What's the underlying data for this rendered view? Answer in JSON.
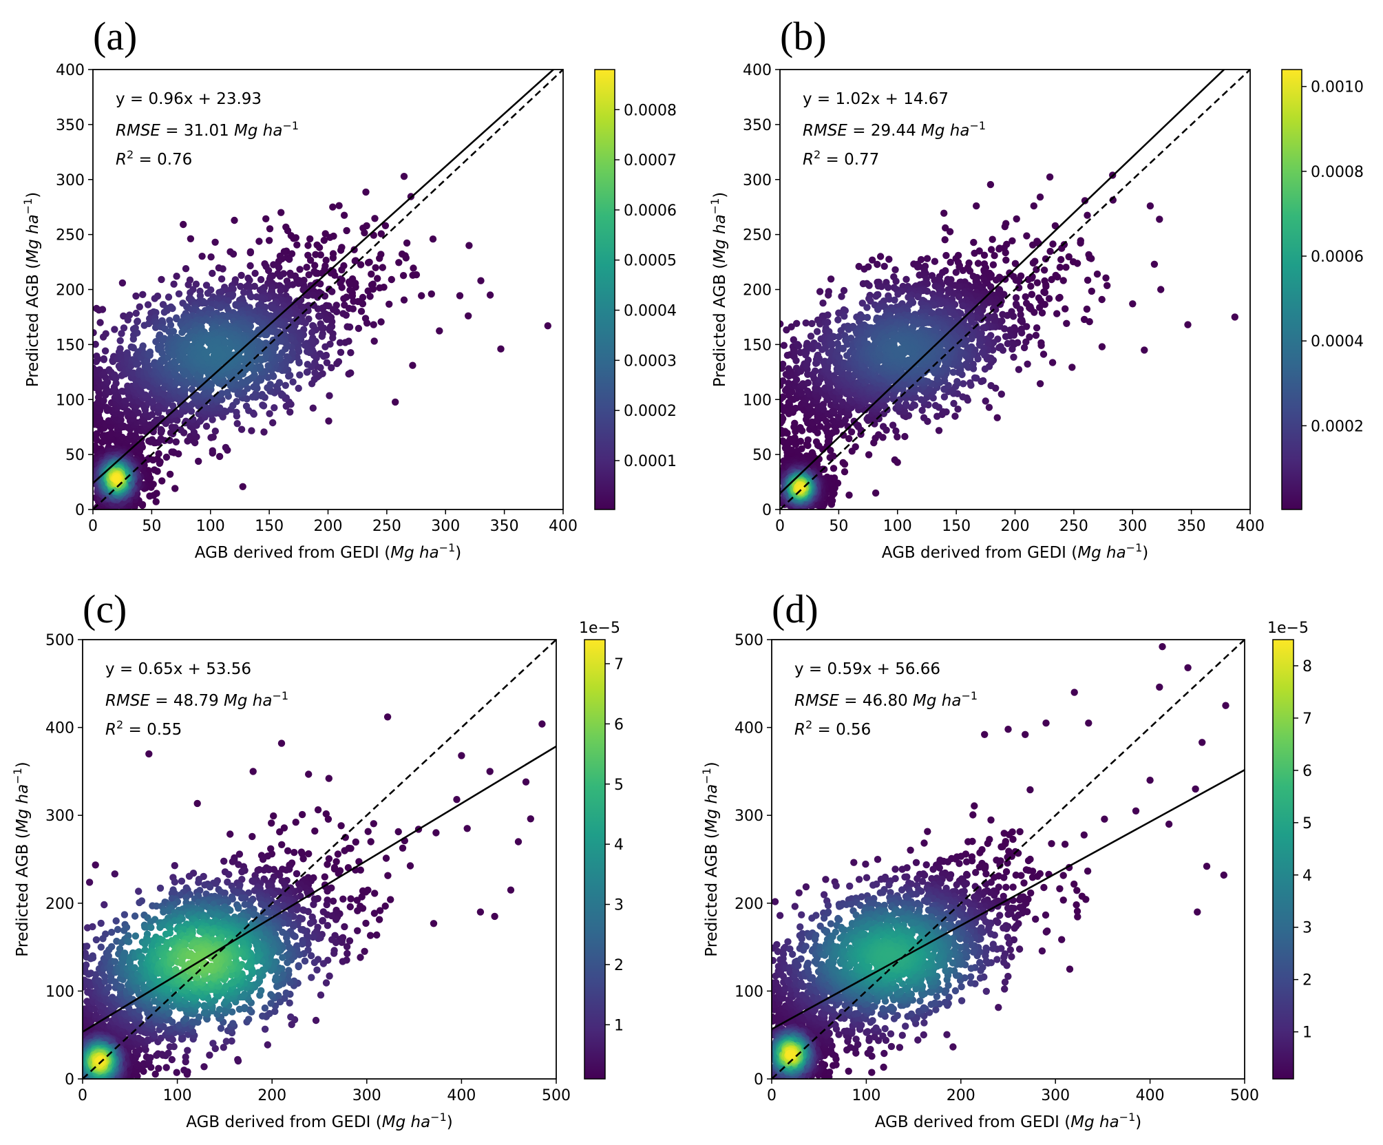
{
  "figure_title": "",
  "colors": {
    "viridis": [
      "#440154",
      "#482878",
      "#3e4989",
      "#31688e",
      "#26828e",
      "#1f9e89",
      "#35b779",
      "#6ece58",
      "#b5de2b",
      "#fde725"
    ],
    "fit_line": "#000000",
    "one_to_one": "#000000"
  },
  "chart_data": [
    {
      "type": "scatter",
      "panel_label": "(a)",
      "title": "",
      "xlabel": "AGB derived from GEDI",
      "ylabel": "Predicted AGB",
      "unit": "Mg ha",
      "unit_exp": "−1",
      "xlim": [
        0,
        400
      ],
      "ylim": [
        0,
        400
      ],
      "xticks": [
        0,
        50,
        100,
        150,
        200,
        250,
        300,
        350,
        400
      ],
      "yticks": [
        0,
        50,
        100,
        150,
        200,
        250,
        300,
        350,
        400
      ],
      "equation": "y = 0.96x + 23.93",
      "rmse_label": "RMSE",
      "rmse_value": "31.01",
      "r2_label": "R",
      "r2_value": "0.76",
      "slope": 0.96,
      "intercept": 23.93,
      "colorbar": {
        "ticks": [
          0.0001,
          0.0002,
          0.0003,
          0.0004,
          0.0005,
          0.0006,
          0.0007,
          0.0008
        ],
        "tick_labels": [
          "0.0001",
          "0.0002",
          "0.0003",
          "0.0004",
          "0.0005",
          "0.0006",
          "0.0007",
          "0.0008"
        ],
        "min": 2.5e-06,
        "max": 0.00088,
        "offset": ""
      },
      "density_clusters": [
        {
          "x": 105,
          "y": 142,
          "sx": 55,
          "sy": 38,
          "level": 0.35
        },
        {
          "x": 20,
          "y": 28,
          "sx": 8,
          "sy": 10,
          "level": 1.0
        }
      ],
      "outliers": [
        [
          387,
          167
        ],
        [
          347,
          146
        ],
        [
          338,
          195
        ],
        [
          330,
          208
        ],
        [
          320,
          240
        ],
        [
          288,
          196
        ],
        [
          272,
          131
        ],
        [
          245,
          232
        ],
        [
          204,
          275
        ],
        [
          160,
          270
        ],
        [
          242,
          210
        ],
        [
          223,
          226
        ]
      ]
    },
    {
      "type": "scatter",
      "panel_label": "(b)",
      "title": "",
      "xlabel": "AGB derived from GEDI",
      "ylabel": "Predicted AGB",
      "unit": "Mg ha",
      "unit_exp": "−1",
      "xlim": [
        0,
        400
      ],
      "ylim": [
        0,
        400
      ],
      "xticks": [
        0,
        50,
        100,
        150,
        200,
        250,
        300,
        350,
        400
      ],
      "yticks": [
        0,
        50,
        100,
        150,
        200,
        250,
        300,
        350,
        400
      ],
      "equation": "y = 1.02x + 14.67",
      "rmse_label": "RMSE",
      "rmse_value": "29.44",
      "r2_label": "R",
      "r2_value": "0.77",
      "slope": 1.02,
      "intercept": 14.67,
      "colorbar": {
        "ticks": [
          0.0002,
          0.0004,
          0.0006,
          0.0008,
          0.001
        ],
        "tick_labels": [
          "0.0002",
          "0.0004",
          "0.0006",
          "0.0008",
          "0.0010"
        ],
        "min": 2.5e-06,
        "max": 0.00104,
        "offset": ""
      },
      "density_clusters": [
        {
          "x": 105,
          "y": 145,
          "sx": 50,
          "sy": 35,
          "level": 0.3
        },
        {
          "x": 17,
          "y": 20,
          "sx": 7,
          "sy": 8,
          "level": 1.0
        }
      ],
      "outliers": [
        [
          387,
          175
        ],
        [
          347,
          168
        ],
        [
          324,
          200
        ],
        [
          315,
          276
        ],
        [
          283,
          304
        ],
        [
          274,
          148
        ],
        [
          270,
          214
        ],
        [
          216,
          276
        ],
        [
          167,
          276
        ],
        [
          310,
          145
        ],
        [
          300,
          187
        ],
        [
          220,
          242
        ]
      ]
    },
    {
      "type": "scatter",
      "panel_label": "(c)",
      "title": "",
      "xlabel": "AGB derived from GEDI",
      "ylabel": "Predicted AGB",
      "unit": "Mg ha",
      "unit_exp": "−1",
      "xlim": [
        0,
        500
      ],
      "ylim": [
        0,
        500
      ],
      "xticks": [
        0,
        100,
        200,
        300,
        400,
        500
      ],
      "yticks": [
        0,
        100,
        200,
        300,
        400,
        500
      ],
      "equation": "y = 0.65x + 53.56",
      "rmse_label": "RMSE",
      "rmse_value": "48.79",
      "r2_label": "R",
      "r2_value": "0.55",
      "slope": 0.65,
      "intercept": 53.56,
      "colorbar": {
        "ticks": [
          1,
          2,
          3,
          4,
          5,
          6,
          7
        ],
        "tick_labels": [
          "1",
          "2",
          "3",
          "4",
          "5",
          "6",
          "7"
        ],
        "min": 0.1,
        "max": 7.4,
        "offset": "1e−5"
      },
      "density_clusters": [
        {
          "x": 125,
          "y": 135,
          "sx": 65,
          "sy": 48,
          "level": 0.78
        },
        {
          "x": 18,
          "y": 20,
          "sx": 12,
          "sy": 14,
          "level": 1.0
        }
      ],
      "outliers": [
        [
          485,
          404
        ],
        [
          322,
          412
        ],
        [
          70,
          370
        ],
        [
          400,
          368
        ],
        [
          430,
          350
        ],
        [
          468,
          338
        ],
        [
          473,
          296
        ],
        [
          460,
          270
        ],
        [
          420,
          190
        ],
        [
          435,
          185
        ],
        [
          452,
          215
        ],
        [
          395,
          318
        ],
        [
          406,
          285
        ],
        [
          260,
          342
        ],
        [
          210,
          382
        ],
        [
          180,
          350
        ]
      ]
    },
    {
      "type": "scatter",
      "panel_label": "(d)",
      "title": "",
      "xlabel": "AGB derived from GEDI",
      "ylabel": "Predicted AGB",
      "unit": "Mg ha",
      "unit_exp": "−1",
      "xlim": [
        0,
        500
      ],
      "ylim": [
        0,
        500
      ],
      "xticks": [
        0,
        100,
        200,
        300,
        400,
        500
      ],
      "yticks": [
        0,
        100,
        200,
        300,
        400,
        500
      ],
      "equation": "y = 0.59x + 56.66",
      "rmse_label": "RMSE",
      "rmse_value": "46.80",
      "r2_label": "R",
      "r2_value": "0.56",
      "slope": 0.59,
      "intercept": 56.66,
      "colorbar": {
        "ticks": [
          1,
          2,
          3,
          4,
          5,
          6,
          7,
          8
        ],
        "tick_labels": [
          "1",
          "2",
          "3",
          "4",
          "5",
          "6",
          "7",
          "8"
        ],
        "min": 0.1,
        "max": 8.5,
        "offset": "1e−5"
      },
      "density_clusters": [
        {
          "x": 125,
          "y": 140,
          "sx": 62,
          "sy": 45,
          "level": 0.62
        },
        {
          "x": 20,
          "y": 28,
          "sx": 12,
          "sy": 14,
          "level": 1.0
        }
      ],
      "outliers": [
        [
          413,
          492
        ],
        [
          440,
          468
        ],
        [
          480,
          425
        ],
        [
          410,
          446
        ],
        [
          455,
          383
        ],
        [
          320,
          440
        ],
        [
          268,
          392
        ],
        [
          225,
          392
        ],
        [
          250,
          398
        ],
        [
          290,
          405
        ],
        [
          335,
          405
        ],
        [
          448,
          330
        ],
        [
          478,
          232
        ],
        [
          460,
          242
        ],
        [
          420,
          290
        ],
        [
          450,
          190
        ],
        [
          385,
          305
        ],
        [
          400,
          340
        ]
      ]
    }
  ]
}
